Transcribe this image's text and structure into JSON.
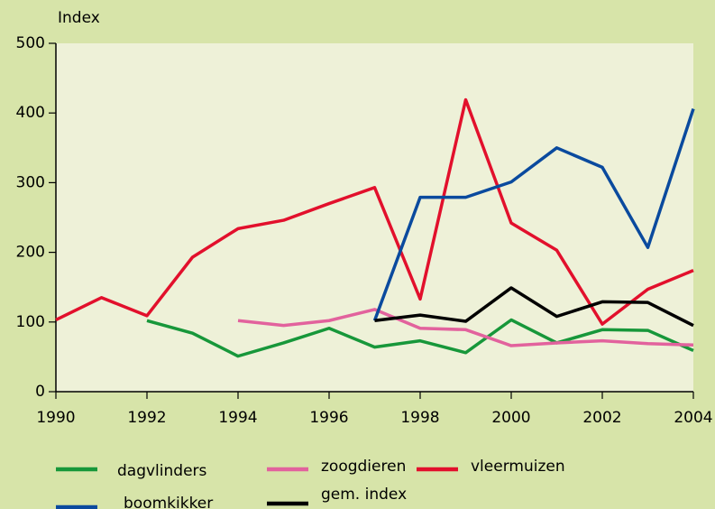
{
  "chart_data": {
    "type": "line",
    "y_label": "Index",
    "x": [
      1990,
      1991,
      1992,
      1993,
      1994,
      1995,
      1996,
      1997,
      1998,
      1999,
      2000,
      2001,
      2002,
      2003,
      2004
    ],
    "series": [
      {
        "name": "dagvlinders",
        "color": "#17973a",
        "values": [
          null,
          null,
          102,
          84,
          51,
          70,
          91,
          64,
          73,
          56,
          103,
          70,
          89,
          88,
          59
        ]
      },
      {
        "name": "zoogdieren",
        "color": "#e2629d",
        "values": [
          null,
          null,
          null,
          null,
          102,
          95,
          102,
          118,
          91,
          89,
          66,
          70,
          73,
          69,
          67
        ]
      },
      {
        "name": "vleermuizen",
        "color": "#e2102c",
        "values": [
          103,
          135,
          109,
          193,
          234,
          246,
          270,
          293,
          133,
          419,
          242,
          203,
          97,
          147,
          174
        ]
      },
      {
        "name": "boomkikker",
        "color": "#0a4a9e",
        "values": [
          null,
          null,
          null,
          null,
          null,
          null,
          null,
          102,
          279,
          279,
          301,
          350,
          322,
          207,
          406
        ]
      },
      {
        "name": "gem. index",
        "color": "#000000",
        "values": [
          null,
          null,
          null,
          null,
          null,
          null,
          null,
          102,
          110,
          101,
          149,
          108,
          129,
          128,
          95
        ]
      }
    ],
    "xlim": [
      1990,
      2004
    ],
    "xticks": [
      1990,
      1992,
      1994,
      1996,
      1998,
      2000,
      2002,
      2004
    ],
    "ylim": [
      0,
      500
    ],
    "yticks": [
      0,
      100,
      200,
      300,
      400,
      500
    ],
    "grid": false
  }
}
